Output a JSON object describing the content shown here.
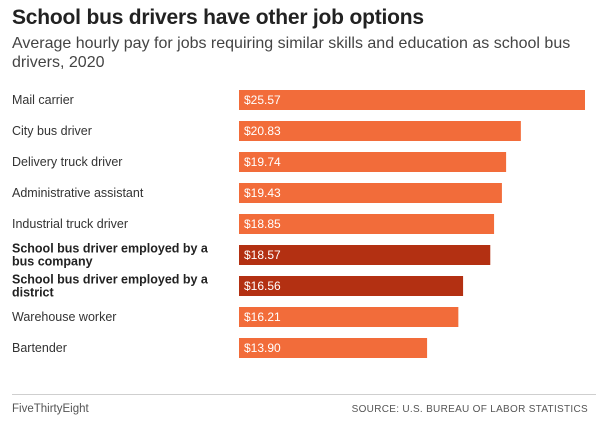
{
  "header": {
    "title": "School bus drivers have other job options",
    "subtitle": "Average hourly pay for jobs requiring similar skills and education as school bus drivers, 2020"
  },
  "footer": {
    "brand": "FiveThirtyEight",
    "source": "SOURCE: U.S. BUREAU OF LABOR STATISTICS"
  },
  "colors": {
    "default_bar": "#f26c3a",
    "highlight_bar": "#b33012"
  },
  "chart_data": {
    "type": "bar",
    "orientation": "horizontal",
    "title": "School bus drivers have other job options",
    "subtitle": "Average hourly pay for jobs requiring similar skills and education as school bus drivers, 2020",
    "categories": [
      "Mail carrier",
      "City bus driver",
      "Delivery truck driver",
      "Administrative assistant",
      "Industrial truck driver",
      "School bus driver employed by a bus company",
      "School bus driver employed by a district",
      "Warehouse worker",
      "Bartender"
    ],
    "values": [
      25.57,
      20.83,
      19.74,
      19.43,
      18.85,
      18.57,
      16.56,
      16.21,
      13.9
    ],
    "value_labels": [
      "$25.57",
      "$20.83",
      "$19.74",
      "$19.43",
      "$18.85",
      "$18.57",
      "$16.56",
      "$16.21",
      "$13.90"
    ],
    "highlighted": [
      false,
      false,
      false,
      false,
      false,
      true,
      true,
      false,
      false
    ],
    "xlim": [
      0,
      25.57
    ],
    "grid": false,
    "legend": "none"
  }
}
